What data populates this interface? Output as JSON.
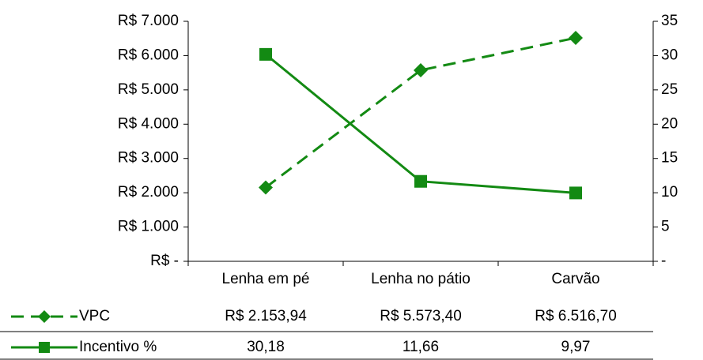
{
  "chart_data": {
    "type": "line",
    "categories": [
      "Lenha em pé",
      "Lenha no pátio",
      "Carvão"
    ],
    "series": [
      {
        "name": "VPC",
        "color": "#138a13",
        "axis": "y",
        "dashed": true,
        "marker": "diamond",
        "values": [
          2153.94,
          5573.4,
          6516.7
        ],
        "value_labels": [
          "R$ 2.153,94",
          "R$ 5.573,40",
          "R$ 6.516,70"
        ]
      },
      {
        "name": "Incentivo %",
        "color": "#138a13",
        "axis": "y2",
        "dashed": false,
        "marker": "square",
        "values": [
          30.18,
          11.66,
          9.97
        ],
        "value_labels": [
          "30,18",
          "11,66",
          "9,97"
        ]
      }
    ],
    "ylim": [
      0,
      7000
    ],
    "yticks": [
      {
        "value": 0,
        "label": "R$ -"
      },
      {
        "value": 1000,
        "label": "R$ 1.000"
      },
      {
        "value": 2000,
        "label": "R$ 2.000"
      },
      {
        "value": 3000,
        "label": "R$ 3.000"
      },
      {
        "value": 4000,
        "label": "R$ 4.000"
      },
      {
        "value": 5000,
        "label": "R$ 5.000"
      },
      {
        "value": 6000,
        "label": "R$ 6.000"
      },
      {
        "value": 7000,
        "label": "R$ 7.000"
      }
    ],
    "y2lim": [
      0,
      35
    ],
    "y2ticks": [
      {
        "value": 0,
        "label": "-"
      },
      5,
      10,
      15,
      20,
      25,
      30,
      35
    ],
    "data_table": true
  }
}
